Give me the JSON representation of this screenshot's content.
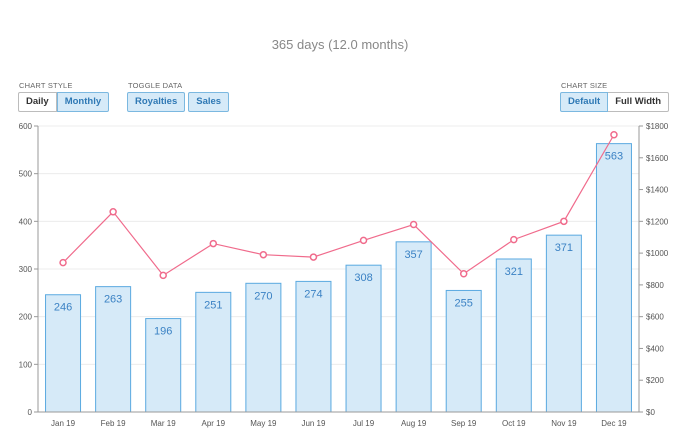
{
  "header": {
    "title": "365 days (12.0 months)"
  },
  "controls": {
    "chart_style": {
      "label": "CHART STYLE",
      "options": [
        "Daily",
        "Monthly"
      ],
      "selected": "Monthly"
    },
    "toggle_data": {
      "label": "TOGGLE DATA",
      "options": [
        "Royalties",
        "Sales"
      ],
      "selected": [
        "Royalties",
        "Sales"
      ]
    },
    "chart_size": {
      "label": "CHART SIZE",
      "options": [
        "Default",
        "Full Width"
      ],
      "selected": "Default"
    }
  },
  "colors": {
    "bar_fill": "#d6eaf8",
    "bar_stroke": "#5aa9e0",
    "line": "#f06b8c",
    "value_label": "#3b82c4"
  },
  "chart_data": {
    "type": "bar",
    "categories": [
      "Jan 19",
      "Feb 19",
      "Mar 19",
      "Apr 19",
      "May 19",
      "Jun 19",
      "Jul 19",
      "Aug 19",
      "Sep 19",
      "Oct 19",
      "Nov 19",
      "Dec 19"
    ],
    "series": [
      {
        "type": "bar",
        "axis": "left",
        "values": [
          246,
          263,
          196,
          251,
          270,
          274,
          308,
          357,
          255,
          321,
          371,
          563
        ]
      },
      {
        "type": "line",
        "axis": "right",
        "values": [
          940,
          1260,
          860,
          1060,
          990,
          975,
          1080,
          1180,
          870,
          1085,
          1200,
          1745
        ]
      }
    ],
    "y_left": {
      "ticks": [
        "0",
        "100",
        "200",
        "300",
        "400",
        "500",
        "600"
      ],
      "range": [
        0,
        600
      ]
    },
    "y_right": {
      "ticks": [
        "$0",
        "$200",
        "$400",
        "$600",
        "$800",
        "$1000",
        "$1200",
        "$1400",
        "$1600",
        "$1800"
      ],
      "range": [
        0,
        1800
      ]
    },
    "grid": true,
    "data_labels": true
  }
}
